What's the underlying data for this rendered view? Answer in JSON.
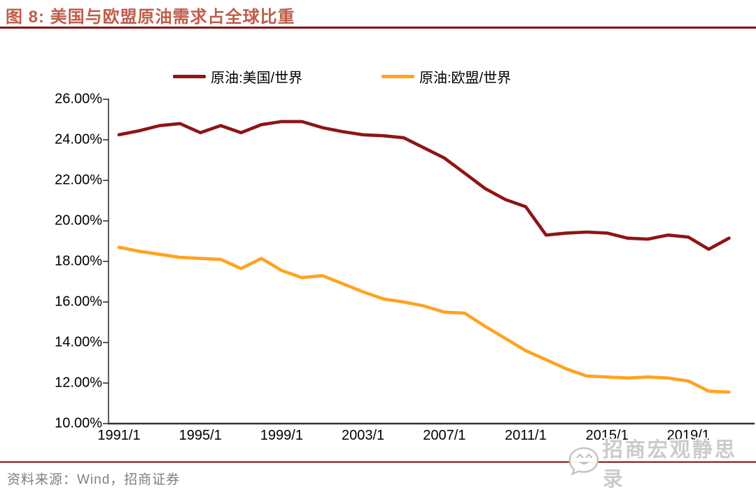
{
  "header": {
    "title": "图 8:  美国与欧盟原油需求占全球比重"
  },
  "source": {
    "label": "资料来源：Wind，招商证券"
  },
  "watermark": {
    "text": "招商宏观静思录",
    "icon": "wechat-chat-bubble-icon"
  },
  "colors": {
    "us_line": "#8E1515",
    "eu_line": "#FFA320",
    "title": "#C05C4A",
    "divider": "#841616",
    "axis": "#333333",
    "tick_label": "#000000",
    "source_text": "#808080",
    "watermark": "#C9C9C9"
  },
  "chart_data": {
    "type": "line",
    "title": "美国与欧盟原油需求占全球比重",
    "xlabel": "",
    "ylabel": "",
    "grid": false,
    "legend_position": "top",
    "ylim": [
      10,
      26
    ],
    "y_ticks": [
      26,
      24,
      22,
      20,
      18,
      16,
      14,
      12,
      10
    ],
    "y_tick_labels": [
      "26.00%",
      "24.00%",
      "22.00%",
      "20.00%",
      "18.00%",
      "16.00%",
      "14.00%",
      "12.00%",
      "10.00%"
    ],
    "x_tick_years": [
      1991,
      1995,
      1999,
      2003,
      2007,
      2011,
      2015,
      2019
    ],
    "x_tick_labels": [
      "1991/1",
      "1995/1",
      "1999/1",
      "2003/1",
      "2007/1",
      "2011/1",
      "2015/1",
      "2019/1"
    ],
    "x": [
      1991,
      1992,
      1993,
      1994,
      1995,
      1996,
      1997,
      1998,
      1999,
      2000,
      2001,
      2002,
      2003,
      2004,
      2005,
      2006,
      2007,
      2008,
      2009,
      2010,
      2011,
      2012,
      2013,
      2014,
      2015,
      2016,
      2017,
      2018,
      2019,
      2020,
      2021
    ],
    "series": [
      {
        "id": "us-world",
        "name": "原油:美国/世界",
        "color": "#8E1515",
        "values": [
          24.25,
          24.45,
          24.7,
          24.8,
          24.35,
          24.7,
          24.35,
          24.75,
          24.9,
          24.9,
          24.6,
          24.4,
          24.25,
          24.2,
          24.1,
          23.6,
          23.1,
          22.35,
          21.6,
          21.05,
          20.7,
          19.3,
          19.4,
          19.45,
          19.4,
          19.15,
          19.1,
          19.3,
          19.2,
          18.6,
          19.15
        ]
      },
      {
        "id": "eu-world",
        "name": "原油:欧盟/世界",
        "color": "#FFA320",
        "values": [
          18.7,
          18.5,
          18.35,
          18.2,
          18.15,
          18.1,
          17.65,
          18.15,
          17.55,
          17.2,
          17.3,
          16.9,
          16.5,
          16.15,
          16.0,
          15.8,
          15.5,
          15.45,
          14.8,
          14.2,
          13.6,
          13.15,
          12.7,
          12.35,
          12.3,
          12.25,
          12.3,
          12.25,
          12.1,
          11.6,
          11.55
        ]
      }
    ]
  }
}
